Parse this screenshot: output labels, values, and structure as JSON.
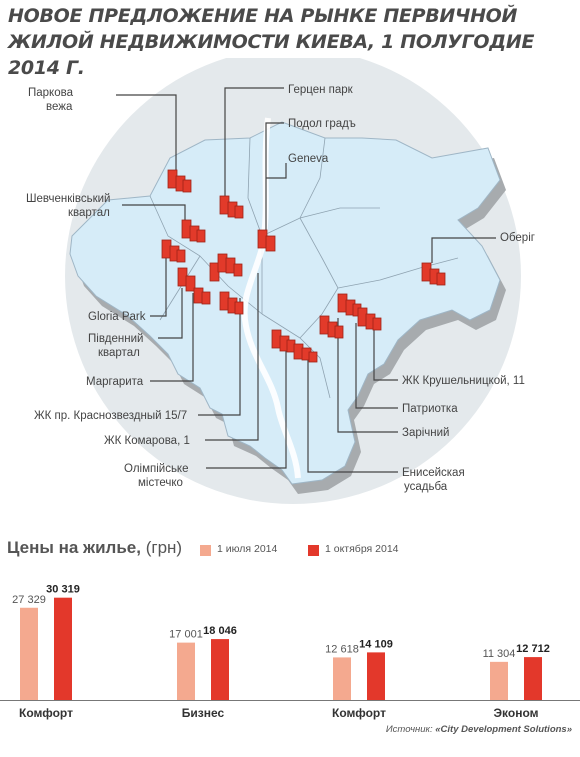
{
  "title_line1": "НОВОЕ ПРЕДЛОЖЕНИЕ НА РЫНКЕ ПЕРВИЧНОЙ",
  "title_line2": "ЖИЛОЙ НЕДВИЖИМОСТИ КИЕВА, 1 ПОЛУГОДИЕ 2014 Г.",
  "map_labels": {
    "parkova": [
      "Паркова",
      "вежа"
    ],
    "gertsen": "Герцен парк",
    "podol": "Подол градъ",
    "geneva": "Geneva",
    "shevchenko": [
      "Шевченківський",
      "квартал"
    ],
    "oberig": "Оберіг",
    "gloria": "Gloria Park",
    "pivdenny": [
      "Південний",
      "квартал"
    ],
    "margarita": "Маргарита",
    "krasnozv": "ЖК пр. Краснозвездный 15/7",
    "komarova": "ЖК Комарова, 1",
    "olimp": [
      "Олімпійське",
      "містечко"
    ],
    "krush": "ЖК Крушельницкой, 11",
    "patriotka": "Патриотка",
    "zarichny": "Зарічний",
    "enisey": [
      "Енисейская",
      "усадьба"
    ]
  },
  "prices": {
    "title_bold": "Цены на жилье,",
    "title_unit": "(грн)"
  },
  "colors": {
    "map_fill": "#d6ecf8",
    "circle": "#e4e9ec",
    "shadow": "#a7abae",
    "building": "#e23a2a",
    "bar_light": "#f4a98f",
    "bar_dark": "#e3382b"
  },
  "chart_data": {
    "type": "bar",
    "categories": [
      "Комфорт",
      "Бизнес",
      "Комфорт",
      "Эконом"
    ],
    "series": [
      {
        "name": "1 июля 2014",
        "values": [
          27329,
          17001,
          12618,
          11304
        ],
        "labels": [
          "27 329",
          "17 001",
          "12 618",
          "11 304"
        ]
      },
      {
        "name": "1 октября 2014",
        "values": [
          30319,
          18046,
          14109,
          12712
        ],
        "labels": [
          "30 319",
          "18 046",
          "14 109",
          "12 712"
        ]
      }
    ],
    "ylim": [
      0,
      32000
    ],
    "xlabel": "",
    "ylabel": ""
  },
  "source": {
    "prefix": "Источник:",
    "name": "«City Development Solutions»"
  }
}
